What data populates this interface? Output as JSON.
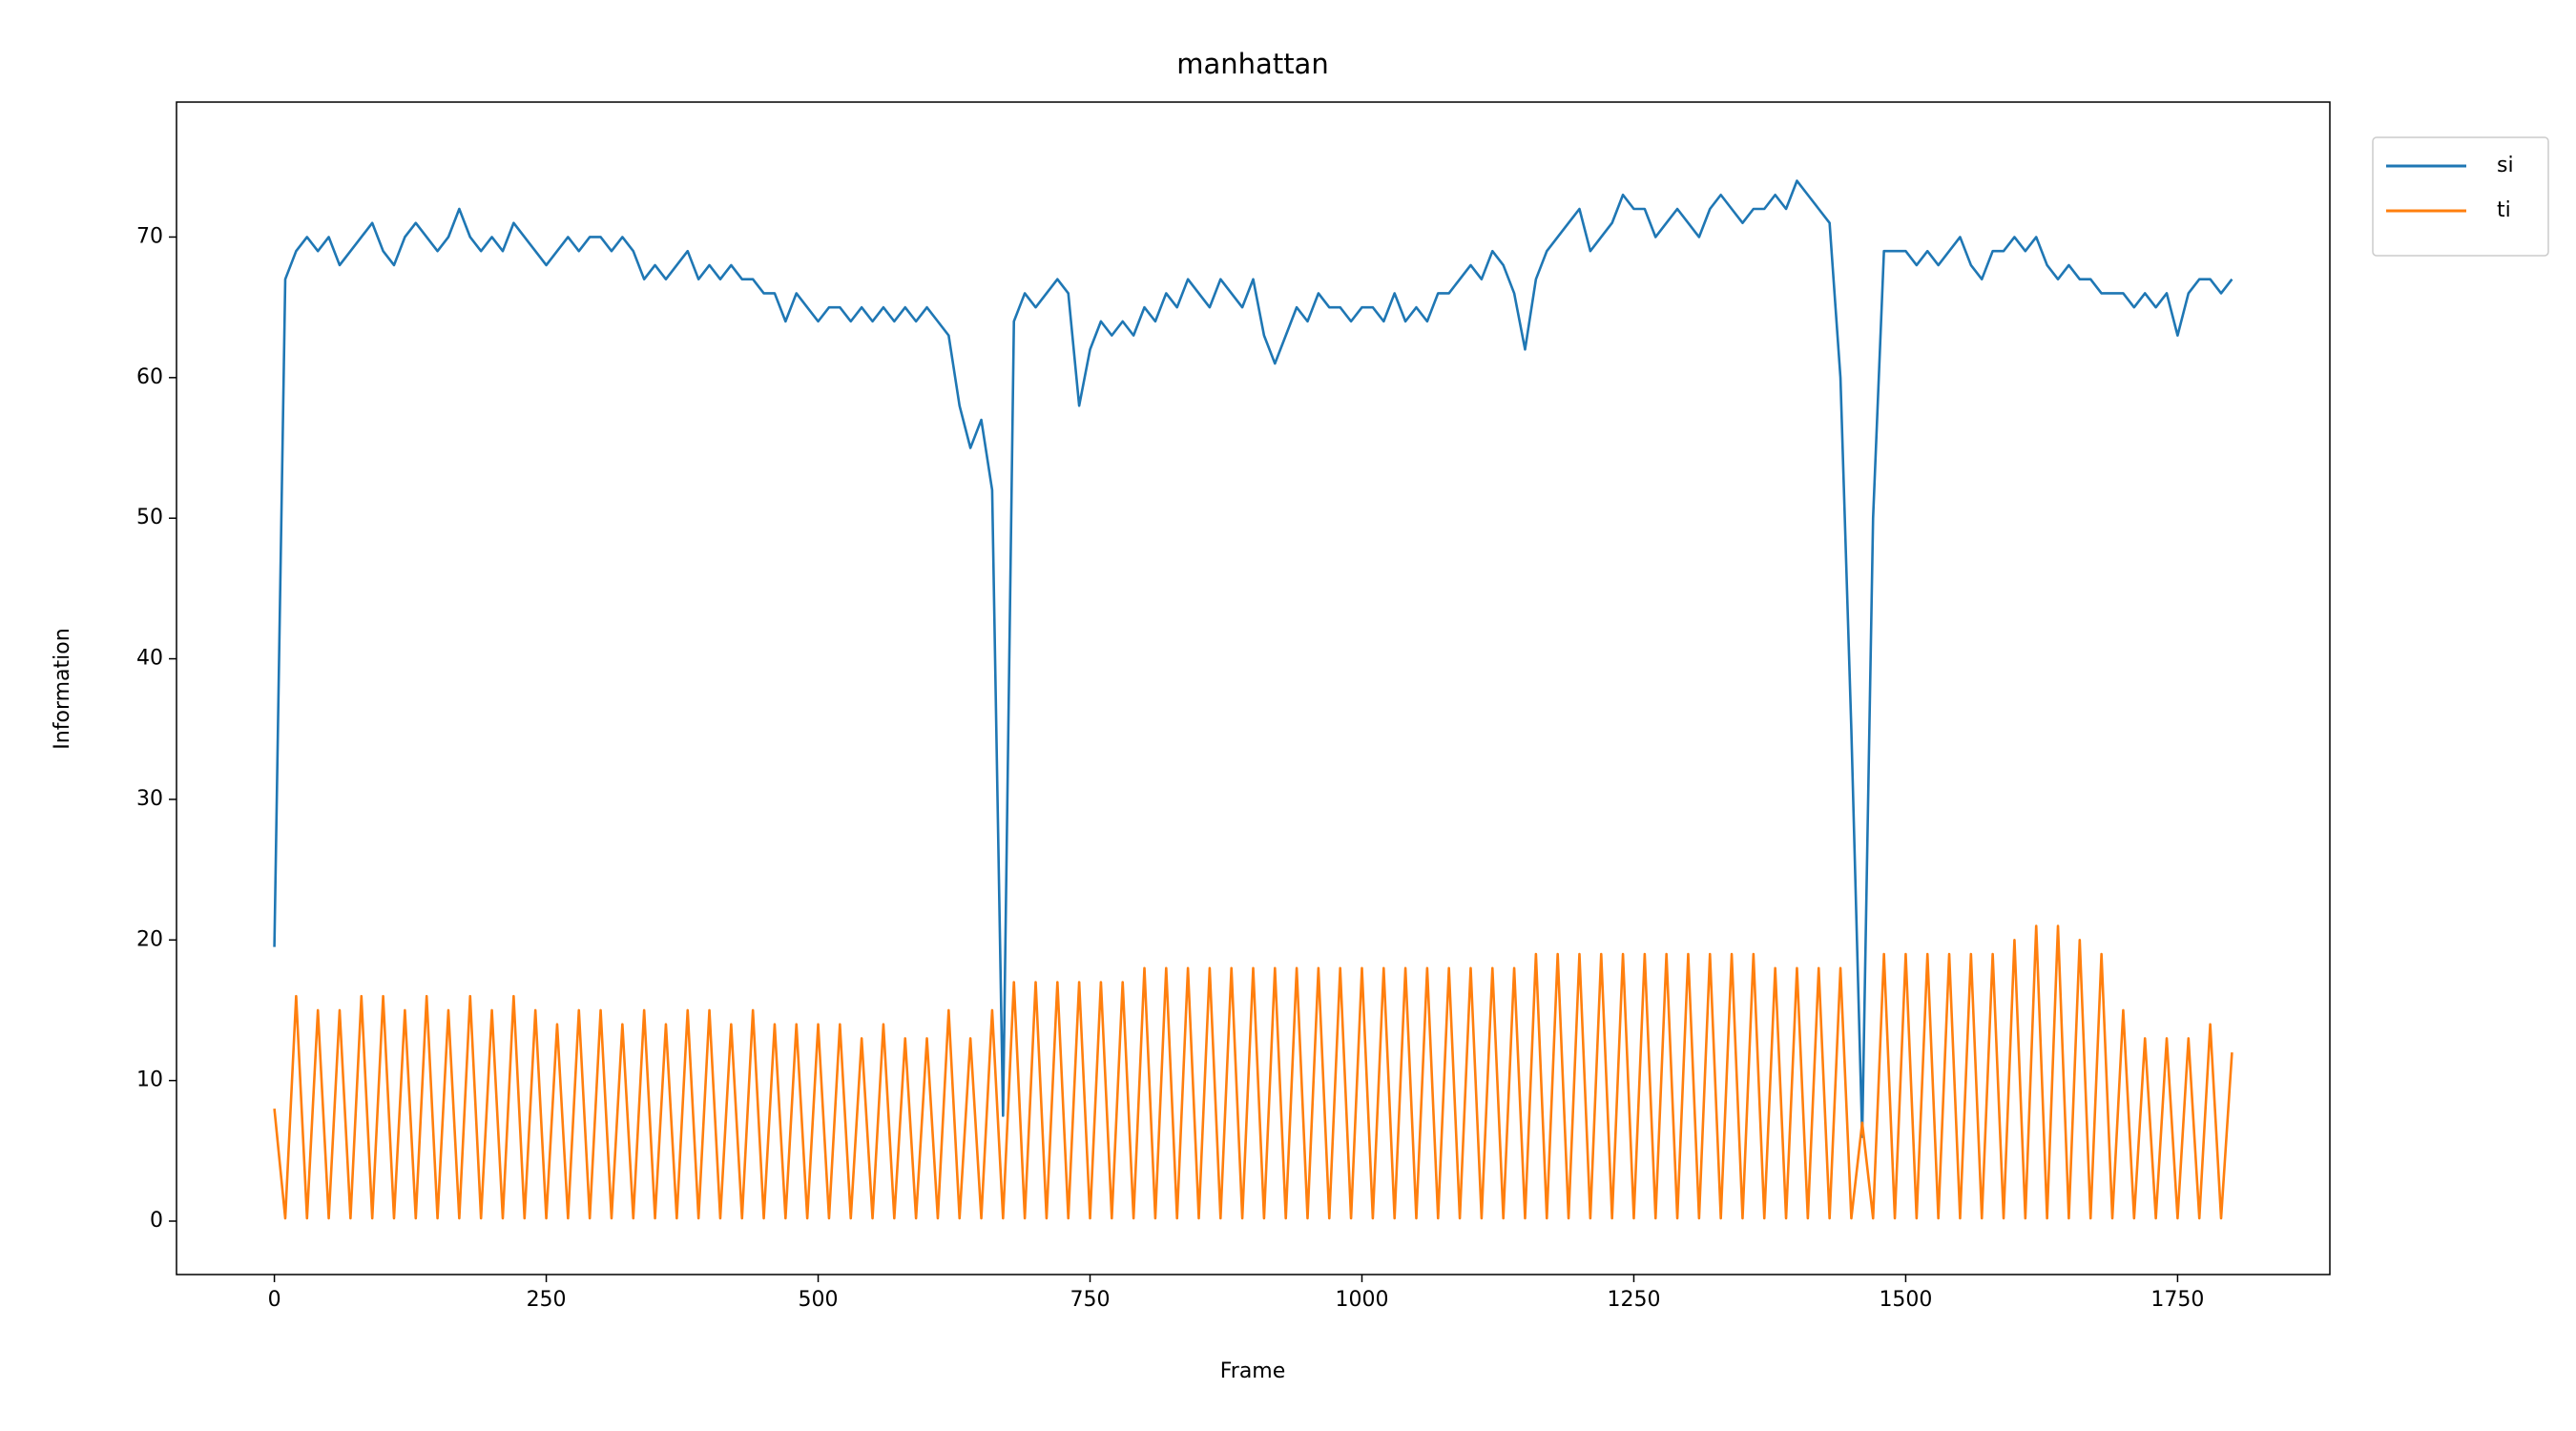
{
  "chart_data": {
    "type": "line",
    "title": "manhattan",
    "xlabel": "Frame",
    "ylabel": "Information",
    "xlim": [
      -90,
      1890
    ],
    "ylim": [
      -3.8,
      79.6
    ],
    "xticks": [
      0,
      250,
      500,
      750,
      1000,
      1250,
      1500,
      1750
    ],
    "yticks": [
      0,
      10,
      20,
      30,
      40,
      50,
      60,
      70
    ],
    "legend": "outside upper right",
    "grid": false,
    "x": [
      0,
      10,
      20,
      30,
      40,
      50,
      60,
      70,
      80,
      90,
      100,
      110,
      120,
      130,
      140,
      150,
      160,
      170,
      180,
      190,
      200,
      210,
      220,
      230,
      240,
      250,
      260,
      270,
      280,
      290,
      300,
      310,
      320,
      330,
      340,
      350,
      360,
      370,
      380,
      390,
      400,
      410,
      420,
      430,
      440,
      450,
      460,
      470,
      480,
      490,
      500,
      510,
      520,
      530,
      540,
      550,
      560,
      570,
      580,
      590,
      600,
      610,
      620,
      630,
      640,
      650,
      660,
      670,
      680,
      690,
      700,
      710,
      720,
      730,
      740,
      750,
      760,
      770,
      780,
      790,
      800,
      810,
      820,
      830,
      840,
      850,
      860,
      870,
      880,
      890,
      900,
      910,
      920,
      930,
      940,
      950,
      960,
      970,
      980,
      990,
      1000,
      1010,
      1020,
      1030,
      1040,
      1050,
      1060,
      1070,
      1080,
      1090,
      1100,
      1110,
      1120,
      1130,
      1140,
      1150,
      1160,
      1170,
      1180,
      1190,
      1200,
      1210,
      1220,
      1230,
      1240,
      1250,
      1260,
      1270,
      1280,
      1290,
      1300,
      1310,
      1320,
      1330,
      1340,
      1350,
      1360,
      1370,
      1380,
      1390,
      1400,
      1410,
      1420,
      1430,
      1440,
      1450,
      1460,
      1470,
      1480,
      1490,
      1500,
      1510,
      1520,
      1530,
      1540,
      1550,
      1560,
      1570,
      1580,
      1590,
      1600,
      1610,
      1620,
      1630,
      1640,
      1650,
      1660,
      1670,
      1680,
      1690,
      1700,
      1710,
      1720,
      1730,
      1740,
      1750,
      1760,
      1770,
      1780,
      1790,
      1800
    ],
    "series": [
      {
        "name": "si",
        "color": "#1f77b4",
        "values": [
          19.5,
          67,
          69,
          70,
          69,
          70,
          68,
          69,
          70,
          71,
          69,
          68,
          70,
          71,
          70,
          69,
          70,
          72,
          70,
          69,
          70,
          69,
          71,
          70,
          69,
          68,
          69,
          70,
          69,
          70,
          70,
          69,
          70,
          69,
          67,
          68,
          67,
          68,
          69,
          67,
          68,
          67,
          68,
          67,
          67,
          66,
          66,
          64,
          66,
          65,
          64,
          65,
          65,
          64,
          65,
          64,
          65,
          64,
          65,
          64,
          65,
          64,
          63,
          58,
          55,
          57,
          52,
          7.5,
          64,
          66,
          65,
          66,
          67,
          66,
          58,
          62,
          64,
          63,
          64,
          63,
          65,
          64,
          66,
          65,
          67,
          66,
          65,
          67,
          66,
          65,
          67,
          63,
          61,
          63,
          65,
          64,
          66,
          65,
          65,
          64,
          65,
          65,
          64,
          66,
          64,
          65,
          64,
          66,
          66,
          67,
          68,
          67,
          69,
          68,
          66,
          62,
          67,
          69,
          70,
          71,
          72,
          69,
          70,
          71,
          73,
          72,
          72,
          70,
          71,
          72,
          71,
          70,
          72,
          73,
          72,
          71,
          72,
          72,
          73,
          72,
          74,
          73,
          72,
          71,
          60,
          35,
          6,
          50,
          69,
          69,
          69,
          68,
          69,
          68,
          69,
          70,
          68,
          67,
          69,
          69,
          70,
          69,
          70,
          68,
          67,
          68,
          67,
          67,
          66,
          66,
          66,
          65,
          66,
          65,
          66,
          63,
          66,
          67,
          67,
          66,
          67
        ]
      },
      {
        "name": "ti",
        "color": "#ff7f0e",
        "values": [
          8,
          0.2,
          16,
          0.2,
          15,
          0.2,
          15,
          0.2,
          16,
          0.2,
          16,
          0.2,
          15,
          0.2,
          16,
          0.2,
          15,
          0.2,
          16,
          0.2,
          15,
          0.2,
          16,
          0.2,
          15,
          0.2,
          14,
          0.2,
          15,
          0.2,
          15,
          0.2,
          14,
          0.2,
          15,
          0.2,
          14,
          0.2,
          15,
          0.2,
          15,
          0.2,
          14,
          0.2,
          15,
          0.2,
          14,
          0.2,
          14,
          0.2,
          14,
          0.2,
          14,
          0.2,
          13,
          0.2,
          14,
          0.2,
          13,
          0.2,
          13,
          0.2,
          15,
          0.2,
          13,
          0.2,
          15,
          0.2,
          17,
          0.2,
          17,
          0.2,
          17,
          0.2,
          17,
          0.2,
          17,
          0.2,
          17,
          0.2,
          18,
          0.2,
          18,
          0.2,
          18,
          0.2,
          18,
          0.2,
          18,
          0.2,
          18,
          0.2,
          18,
          0.2,
          18,
          0.2,
          18,
          0.2,
          18,
          0.2,
          18,
          0.2,
          18,
          0.2,
          18,
          0.2,
          18,
          0.2,
          18,
          0.2,
          18,
          0.2,
          18,
          0.2,
          18,
          0.2,
          19,
          0.2,
          19,
          0.2,
          19,
          0.2,
          19,
          0.2,
          19,
          0.2,
          19,
          0.2,
          19,
          0.2,
          19,
          0.2,
          19,
          0.2,
          19,
          0.2,
          19,
          0.2,
          18,
          0.2,
          18,
          0.2,
          18,
          0.2,
          18,
          0.2,
          7,
          0.2,
          19,
          0.2,
          19,
          0.2,
          19,
          0.2,
          19,
          0.2,
          19,
          0.2,
          19,
          0.2,
          20,
          0.2,
          21,
          0.2,
          21,
          0.2,
          20,
          0.2,
          19,
          0.2,
          15,
          0.2,
          13,
          0.2,
          13,
          0.2,
          13,
          0.2,
          14,
          0.2,
          12
        ]
      }
    ]
  }
}
